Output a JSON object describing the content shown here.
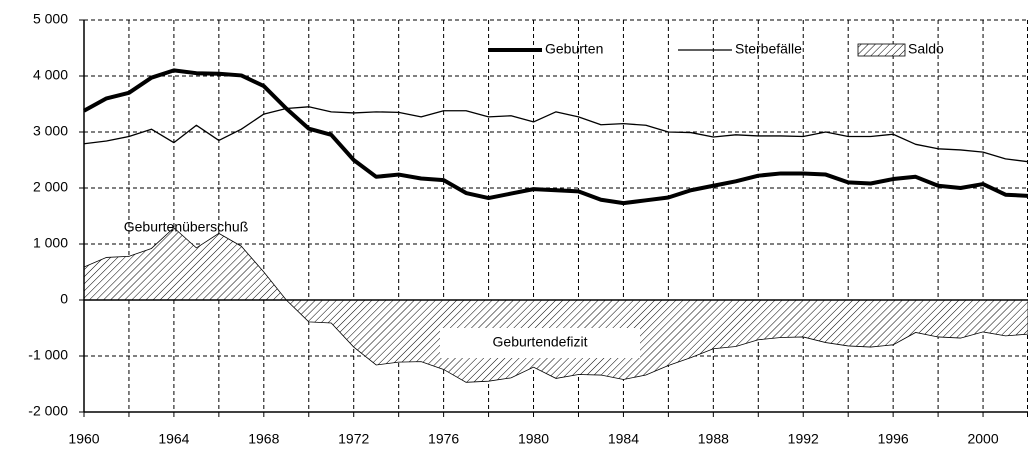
{
  "chart_data": {
    "type": "line",
    "x": [
      1960,
      1961,
      1962,
      1963,
      1964,
      1965,
      1966,
      1967,
      1968,
      1969,
      1970,
      1971,
      1972,
      1973,
      1974,
      1975,
      1976,
      1977,
      1978,
      1979,
      1980,
      1981,
      1982,
      1983,
      1984,
      1985,
      1986,
      1987,
      1988,
      1989,
      1990,
      1991,
      1992,
      1993,
      1994,
      1995,
      1996,
      1997,
      1998,
      1999,
      2000,
      2001,
      2002
    ],
    "series": [
      {
        "name": "Geburten",
        "type": "line",
        "color": "#000000",
        "width": 4,
        "values": [
          3380,
          3600,
          3700,
          3970,
          4100,
          4050,
          4040,
          4010,
          3820,
          3420,
          3060,
          2950,
          2500,
          2200,
          2240,
          2170,
          2140,
          1910,
          1820,
          1900,
          1980,
          1960,
          1940,
          1790,
          1730,
          1780,
          1830,
          1960,
          2040,
          2120,
          2220,
          2260,
          2260,
          2240,
          2100,
          2080,
          2160,
          2200,
          2040,
          2000,
          2070,
          1880,
          1860
        ]
      },
      {
        "name": "Sterbefälle",
        "type": "line",
        "color": "#000000",
        "width": 1.3,
        "values": [
          2790,
          2840,
          2920,
          3050,
          2810,
          3120,
          2850,
          3050,
          3320,
          3420,
          3450,
          3360,
          3340,
          3360,
          3350,
          3270,
          3380,
          3380,
          3270,
          3290,
          3180,
          3360,
          3270,
          3130,
          3150,
          3120,
          3000,
          2990,
          2910,
          2950,
          2930,
          2930,
          2920,
          3000,
          2920,
          2920,
          2960,
          2780,
          2700,
          2680,
          2640,
          2520,
          2470
        ]
      },
      {
        "name": "Saldo",
        "type": "area",
        "color": "#000000",
        "values": [
          590,
          760,
          780,
          920,
          1290,
          930,
          1190,
          960,
          500,
          0,
          -390,
          -410,
          -840,
          -1160,
          -1110,
          -1100,
          -1240,
          -1470,
          -1450,
          -1390,
          -1200,
          -1400,
          -1330,
          -1340,
          -1420,
          -1340,
          -1170,
          -1030,
          -870,
          -830,
          -710,
          -670,
          -660,
          -760,
          -820,
          -840,
          -800,
          -580,
          -660,
          -680,
          -570,
          -640,
          -610
        ]
      }
    ],
    "xlim": [
      1960,
      2002
    ],
    "xticks": [
      1960,
      1964,
      1968,
      1972,
      1976,
      1980,
      1984,
      1988,
      1992,
      1996,
      2000
    ],
    "xminorticks": [
      1962,
      1966,
      1970,
      1974,
      1978,
      1982,
      1986,
      1990,
      1994,
      1998,
      2002
    ],
    "ylim": [
      -2000,
      5000
    ],
    "yticks": [
      {
        "value": -2000,
        "label": "-2 000"
      },
      {
        "value": -1000,
        "label": "-1 000"
      },
      0,
      {
        "value": 1000,
        "label": "1 000"
      },
      {
        "value": 2000,
        "label": "2 000"
      },
      {
        "value": 3000,
        "label": "3 000"
      },
      {
        "value": 4000,
        "label": "4 000"
      },
      {
        "value": 5000,
        "label": "5 000"
      }
    ],
    "grid": true,
    "legend": "top",
    "annotations": [
      "Geburtenüberschuß",
      "Geburtendefizit"
    ]
  }
}
